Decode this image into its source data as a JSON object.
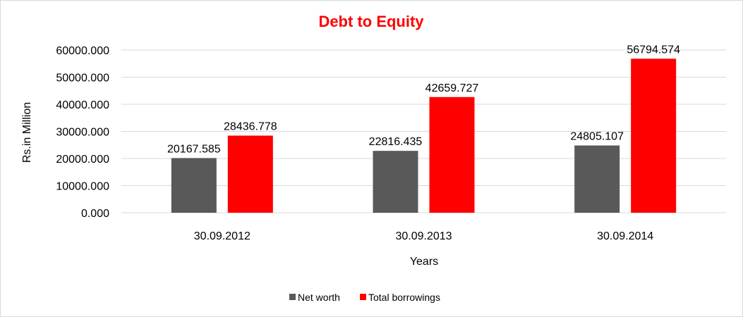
{
  "chart_data": {
    "type": "bar",
    "title": "Debt to Equity",
    "xlabel": "Years",
    "ylabel": "Rs.in Million",
    "categories": [
      "30.09.2012",
      "30.09.2013",
      "30.09.2014"
    ],
    "series": [
      {
        "name": "Net worth",
        "color": "#595959",
        "values": [
          20167.585,
          22816.435,
          24805.107
        ],
        "labels": [
          "20167.585",
          "22816.435",
          "24805.107"
        ]
      },
      {
        "name": "Total borrowings",
        "color": "#ff0000",
        "values": [
          28436.778,
          42659.727,
          56794.574
        ],
        "labels": [
          "28436.778",
          "42659.727",
          "56794.574"
        ]
      }
    ],
    "ylim": [
      0,
      60000
    ],
    "yticks": [
      0,
      10000,
      20000,
      30000,
      40000,
      50000,
      60000
    ],
    "ytick_labels": [
      "0.000",
      "10000.000",
      "20000.000",
      "30000.000",
      "40000.000",
      "50000.000",
      "60000.000"
    ],
    "grid": true,
    "legend": "bottom",
    "title_color": "#ff0000"
  }
}
